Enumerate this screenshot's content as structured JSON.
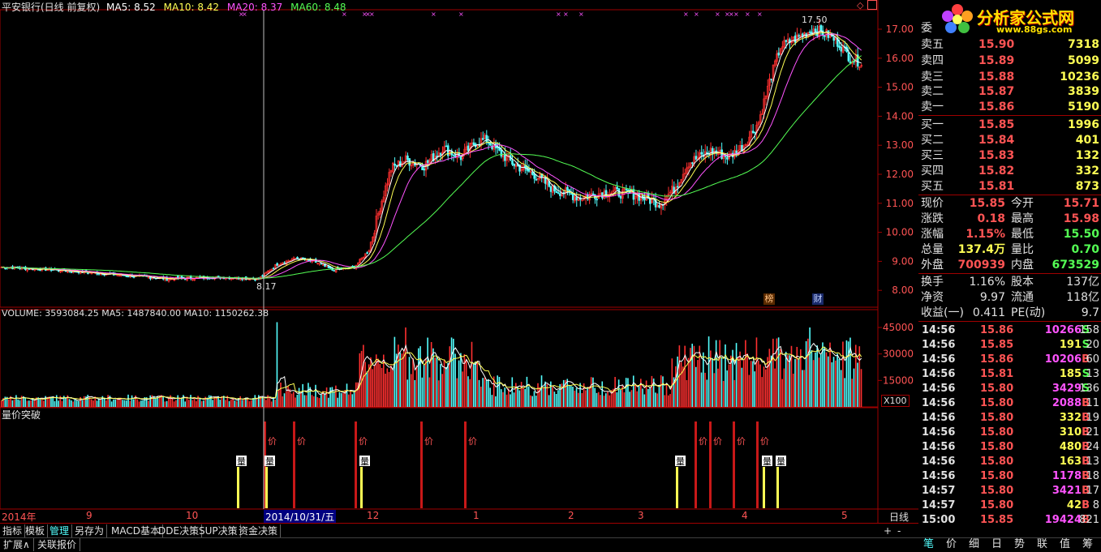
{
  "header": {
    "title": "平安银行(日线 前复权)",
    "ma5": "MA5: 8.52",
    "ma10": "MA10: 8.42",
    "ma20": "MA20: 8.37",
    "ma60": "MA60: 8.48"
  },
  "volume_header": "VOLUME: 3593084.25  MA5: 1487840.00  MA10: 1150262.38",
  "indicator_title": "量价突破",
  "price_axis": [
    "17.00",
    "16.00",
    "15.00",
    "14.00",
    "13.00",
    "12.00",
    "11.00",
    "10.00",
    "9.00",
    "8.00"
  ],
  "volume_axis": [
    "45000",
    "30000",
    "15000"
  ],
  "volume_unit": "X100",
  "high_label": "17.50",
  "low_label": "8.17",
  "badges": {
    "bang": "榜",
    "cai": "财"
  },
  "signal_labels": {
    "vol": "量",
    "price": "价"
  },
  "time_axis": {
    "year": "2014年",
    "months": [
      "9",
      "10",
      "12",
      "1",
      "2",
      "3",
      "4",
      "5"
    ],
    "cursor_date": "2014/10/31/五",
    "period": "日线"
  },
  "toolbar": {
    "items": [
      "指标",
      "模板",
      "管理",
      "另存为",
      "MACD基本",
      "DDE决策",
      "SUP决策",
      "资金决策"
    ],
    "active": "管理",
    "plus": "+",
    "minus": "-"
  },
  "bottom_bar": [
    "扩展∧",
    "关联报价"
  ],
  "panel_tabs": [
    "笔",
    "价",
    "细",
    "日",
    "势",
    "联",
    "值",
    "筹"
  ],
  "panel_active_tab": "笔",
  "logo": {
    "title": "分析家公式网",
    "url": "www.88gs.com"
  },
  "order_book": {
    "wei_label": "委",
    "sells": [
      {
        "label": "卖五",
        "price": "15.90",
        "vol": "7318"
      },
      {
        "label": "卖四",
        "price": "15.89",
        "vol": "5099"
      },
      {
        "label": "卖三",
        "price": "15.88",
        "vol": "10236"
      },
      {
        "label": "卖二",
        "price": "15.87",
        "vol": "3839"
      },
      {
        "label": "卖一",
        "price": "15.86",
        "vol": "5190"
      }
    ],
    "buys": [
      {
        "label": "买一",
        "price": "15.85",
        "vol": "1996"
      },
      {
        "label": "买二",
        "price": "15.84",
        "vol": "401"
      },
      {
        "label": "买三",
        "price": "15.83",
        "vol": "132"
      },
      {
        "label": "买四",
        "price": "15.82",
        "vol": "332"
      },
      {
        "label": "买五",
        "price": "15.81",
        "vol": "873"
      }
    ]
  },
  "quote": {
    "xianjia": {
      "label": "现价",
      "value": "15.85"
    },
    "jinkai": {
      "label": "今开",
      "value": "15.71"
    },
    "zhangdie": {
      "label": "涨跌",
      "value": "0.18"
    },
    "zuigao": {
      "label": "最高",
      "value": "15.98"
    },
    "zhangfu": {
      "label": "涨幅",
      "value": "1.15%"
    },
    "zuidi": {
      "label": "最低",
      "value": "15.50"
    },
    "zongliang": {
      "label": "总量",
      "value": "137.4万"
    },
    "liangbi": {
      "label": "量比",
      "value": "0.70"
    },
    "waipan": {
      "label": "外盘",
      "value": "700939"
    },
    "neipan": {
      "label": "内盘",
      "value": "673529"
    },
    "huanshou": {
      "label": "换手",
      "value": "1.16%"
    },
    "guben": {
      "label": "股本",
      "value": "137亿"
    },
    "jingzi": {
      "label": "净资",
      "value": "9.97"
    },
    "liutong": {
      "label": "流通",
      "value": "118亿"
    },
    "shouyi": {
      "label": "收益(一)",
      "value": "0.411"
    },
    "pe": {
      "label": "PE(动)",
      "value": "9.7"
    }
  },
  "ticks": [
    {
      "t": "14:56",
      "p": "15.86",
      "v": "10266",
      "s": "S",
      "n": "158"
    },
    {
      "t": "14:56",
      "p": "15.85",
      "v": "191",
      "s": "S",
      "n": "20"
    },
    {
      "t": "14:56",
      "p": "15.86",
      "v": "10206",
      "s": "B",
      "n": "60"
    },
    {
      "t": "14:56",
      "p": "15.81",
      "v": "185",
      "s": "S",
      "n": "13"
    },
    {
      "t": "14:56",
      "p": "15.80",
      "v": "3429",
      "s": "S",
      "n": "136"
    },
    {
      "t": "14:56",
      "p": "15.80",
      "v": "2088",
      "s": "B",
      "n": "11"
    },
    {
      "t": "14:56",
      "p": "15.80",
      "v": "332",
      "s": "B",
      "n": "19"
    },
    {
      "t": "14:56",
      "p": "15.80",
      "v": "310",
      "s": "B",
      "n": "21"
    },
    {
      "t": "14:56",
      "p": "15.80",
      "v": "480",
      "s": "B",
      "n": "24"
    },
    {
      "t": "14:56",
      "p": "15.80",
      "v": "163",
      "s": "B",
      "n": "13"
    },
    {
      "t": "14:56",
      "p": "15.80",
      "v": "1178",
      "s": "B",
      "n": "18"
    },
    {
      "t": "14:57",
      "p": "15.80",
      "v": "3421",
      "s": "B",
      "n": "17"
    },
    {
      "t": "14:57",
      "p": "15.80",
      "v": "42",
      "s": "B",
      "n": "8"
    },
    {
      "t": "15:00",
      "p": "15.85",
      "v": "19424",
      "s": "B",
      "n": "821"
    }
  ],
  "colors": {
    "up": "#ff3030",
    "down": "#54ffff",
    "ma5": "#ffffff",
    "ma10": "#ffff54",
    "ma20": "#ff54ff",
    "ma60": "#54ff54",
    "frame": "#a00000"
  }
}
